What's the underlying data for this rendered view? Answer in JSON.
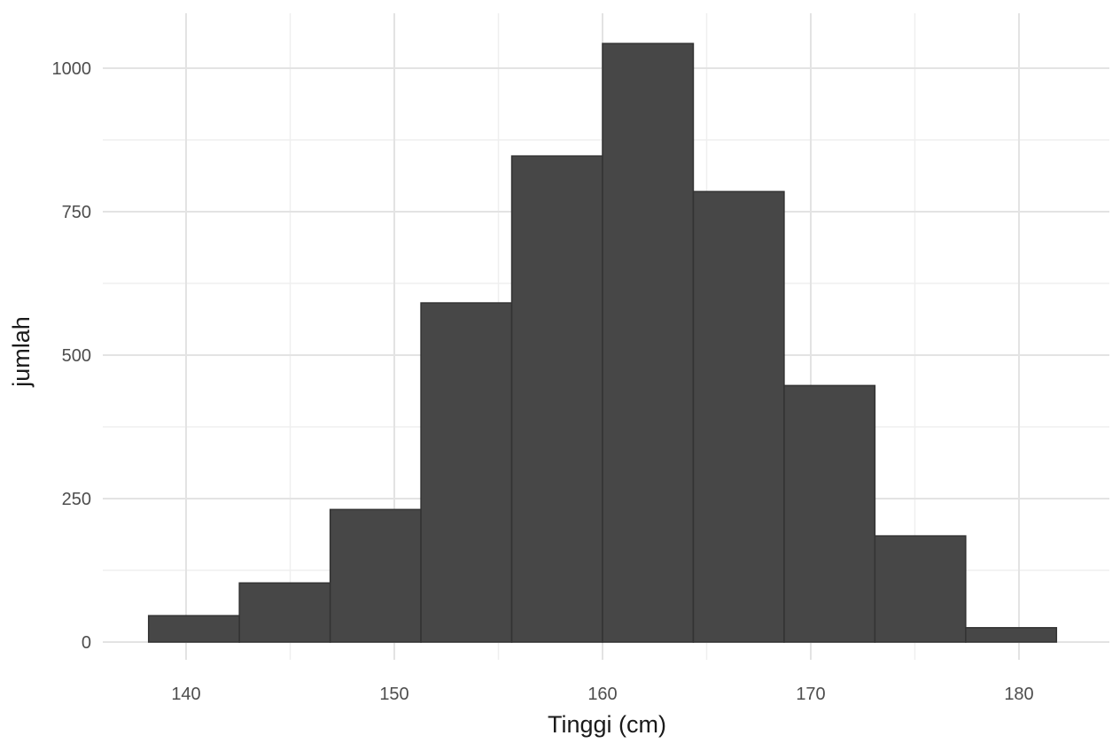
{
  "chart_data": {
    "type": "bar",
    "subtype": "histogram",
    "title": "",
    "xlabel": "Tinggi (cm)",
    "ylabel": "jumlah",
    "x_ticks": [
      140,
      150,
      160,
      170,
      180
    ],
    "x_tick_labels": [
      "140",
      "150",
      "160",
      "170",
      "180"
    ],
    "y_ticks": [
      0,
      250,
      500,
      750,
      1000
    ],
    "y_tick_labels": [
      "0",
      "250",
      "500",
      "750",
      "1000"
    ],
    "xlim": [
      133.9,
      182.3
    ],
    "ylim": [
      0,
      1085
    ],
    "grid": true,
    "legend": "none",
    "bar_color": "#474747",
    "bin_edges": [
      138.2,
      142.56,
      146.92,
      151.28,
      155.64,
      160.0,
      164.36,
      168.72,
      173.08,
      177.44,
      181.8
    ],
    "categories": [
      "138.2-142.6",
      "142.6-146.9",
      "146.9-151.3",
      "151.3-155.6",
      "155.6-160.0",
      "160.0-164.4",
      "164.4-168.7",
      "168.7-173.1",
      "173.1-177.4",
      "177.4-181.8"
    ],
    "values": [
      46,
      103,
      231,
      591,
      847,
      1043,
      785,
      447,
      185,
      25
    ]
  },
  "axes": {
    "x_title": "Tinggi (cm)",
    "y_title": "jumlah"
  }
}
